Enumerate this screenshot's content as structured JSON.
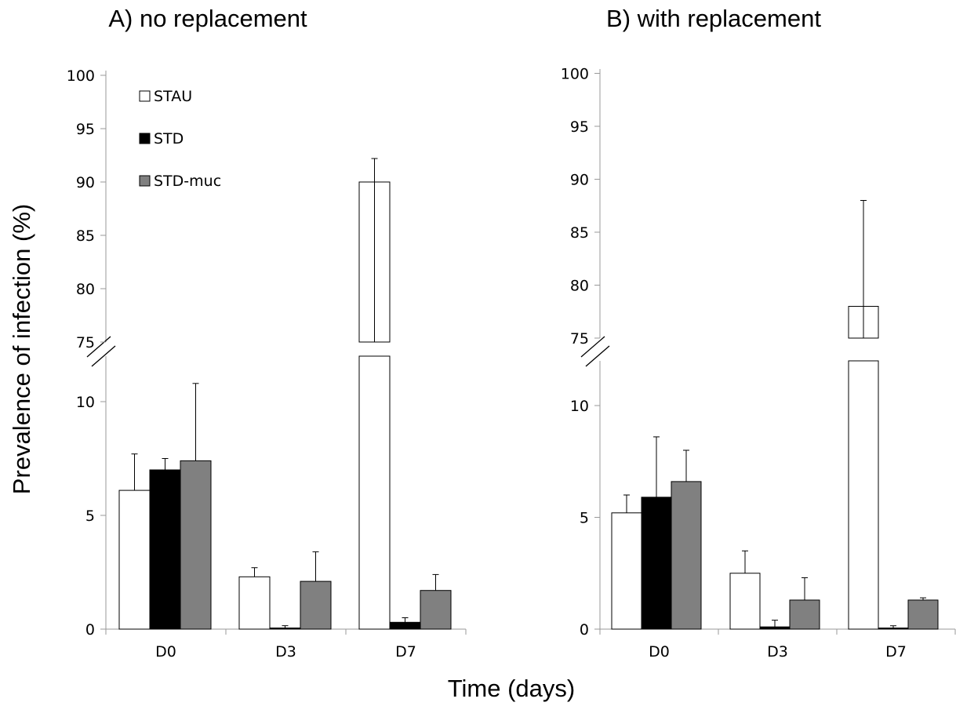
{
  "colors": {
    "STAU": "#ffffff",
    "STD": "#000000",
    "STD-muc": "#808080",
    "stroke": "#000000",
    "axis": "#999999"
  },
  "ylabel": "Prevalence of infection (%)",
  "xlabel": "Time (days)",
  "chart_data": [
    {
      "type": "bar",
      "title": "A) no replacement",
      "categories": [
        "D0",
        "D3",
        "D7"
      ],
      "ylabel": "Prevalence of infection (%)",
      "xlabel": "Time (days)",
      "y_axis_break": {
        "lower_range": [
          0,
          12
        ],
        "upper_range": [
          75,
          100
        ]
      },
      "lower_ticks": [
        "0",
        "5",
        "10"
      ],
      "upper_ticks": [
        "75",
        "80",
        "85",
        "90",
        "95",
        "100"
      ],
      "legend": {
        "position": "top-left",
        "entries": [
          "STAU",
          "STD",
          "STD-muc"
        ]
      },
      "series": [
        {
          "name": "STAU",
          "values": [
            6.1,
            2.3,
            90.0
          ],
          "errors": [
            1.6,
            0.4,
            2.2
          ]
        },
        {
          "name": "STD",
          "values": [
            7.0,
            0.05,
            0.3
          ],
          "errors": [
            0.5,
            0.1,
            0.2
          ]
        },
        {
          "name": "STD-muc",
          "values": [
            7.4,
            2.1,
            1.7
          ],
          "errors": [
            3.4,
            1.3,
            0.7
          ]
        }
      ]
    },
    {
      "type": "bar",
      "title": "B) with replacement",
      "categories": [
        "D0",
        "D3",
        "D7"
      ],
      "y_axis_break": {
        "lower_range": [
          0,
          12
        ],
        "upper_range": [
          75,
          100
        ]
      },
      "lower_ticks": [
        "0",
        "5",
        "10"
      ],
      "upper_ticks": [
        "75",
        "80",
        "85",
        "90",
        "95",
        "100"
      ],
      "series": [
        {
          "name": "STAU",
          "values": [
            5.2,
            2.5,
            78.0
          ],
          "errors": [
            0.8,
            1.0,
            10.0
          ]
        },
        {
          "name": "STD",
          "values": [
            5.9,
            0.1,
            0.05
          ],
          "errors": [
            2.7,
            0.3,
            0.1
          ]
        },
        {
          "name": "STD-muc",
          "values": [
            6.6,
            1.3,
            1.3
          ],
          "errors": [
            1.4,
            1.0,
            0.1
          ]
        }
      ]
    }
  ]
}
